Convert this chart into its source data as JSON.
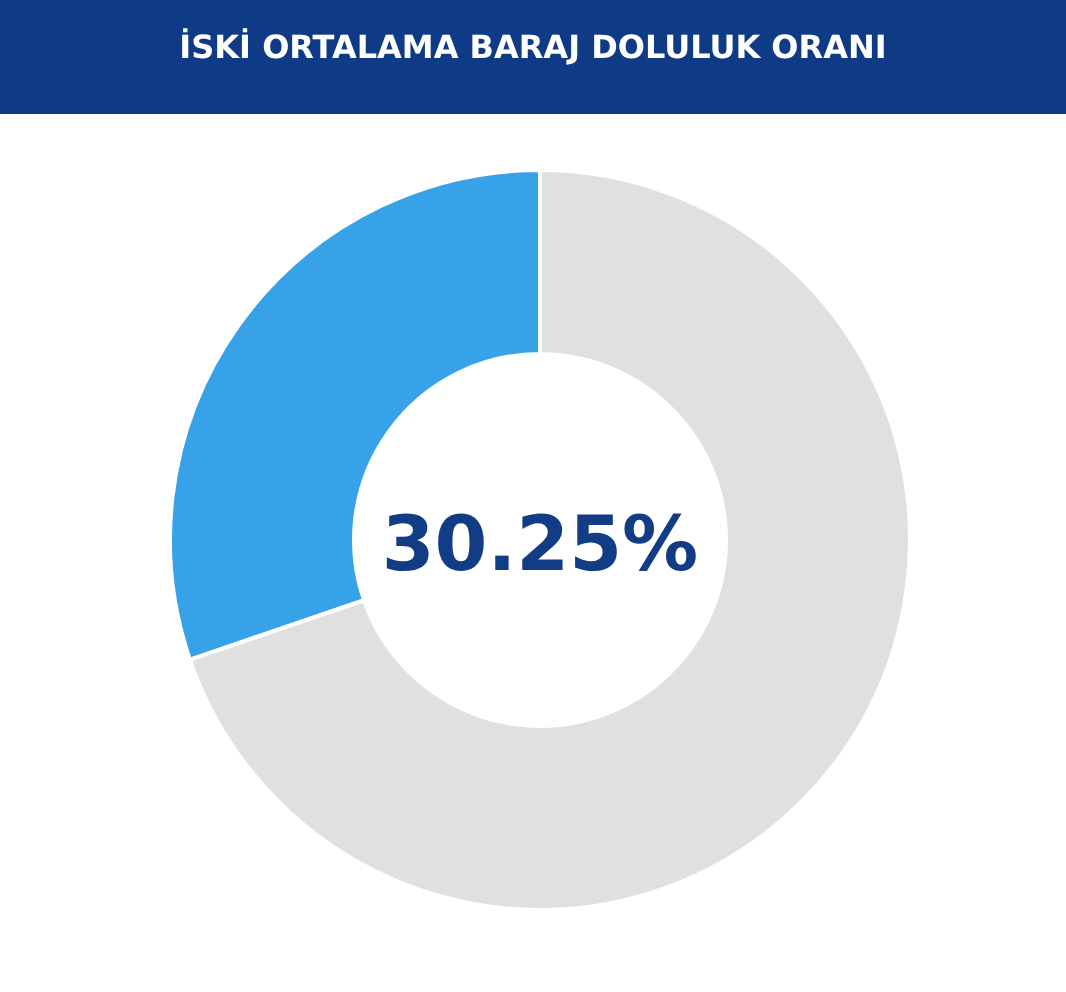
{
  "chart_data": {
    "type": "donut",
    "title": "İSKİ ORTALAMA BARAJ DOLULUK ORANI",
    "categories": [
      null,
      null
    ],
    "values": [
      30.25,
      69.75
    ],
    "colors": [
      "#38a2e9",
      "#e0e0e0"
    ],
    "annotations": [
      "30.25%"
    ]
  }
}
